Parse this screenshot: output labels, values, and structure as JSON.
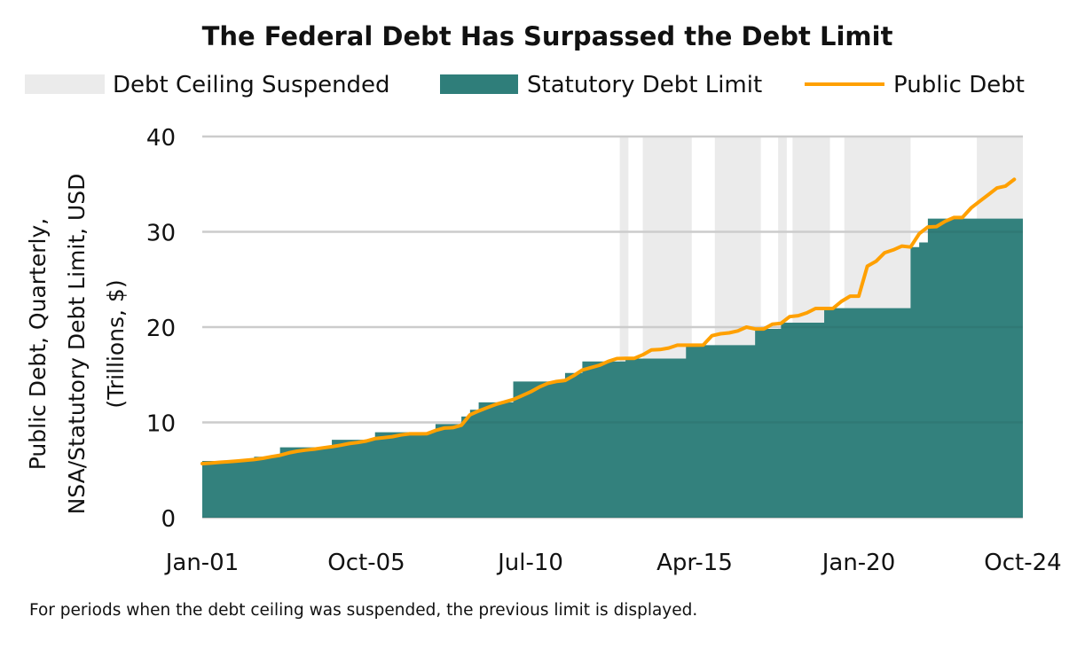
{
  "chart_data": {
    "type": "area+line",
    "title": "The Federal Debt Has Surpassed the Debt Limit",
    "ylabel_lines": [
      "Public Debt, Quarterly,",
      "NSA/Statutory Debt Limit, USD",
      "(Trillions, $)"
    ],
    "xlabel": "",
    "ylim": [
      0,
      40
    ],
    "yticks": [
      "0",
      "10",
      "20",
      "30",
      "40"
    ],
    "xlim": [
      "Jan-01",
      "Oct-24"
    ],
    "xticks": [
      "Jan-01",
      "Oct-05",
      "Jul-10",
      "Apr-15",
      "Jan-20",
      "Oct-24"
    ],
    "grid": "horizontal",
    "legend_position": "top",
    "legend": {
      "suspended": "Debt Ceiling Suspended",
      "limit": "Statutory Debt Limit",
      "debt": "Public Debt"
    },
    "colors": {
      "suspended": "#ebebeb",
      "limit": "#2f7e7a",
      "debt": "#ffa000",
      "grid": "#d9d9d9"
    },
    "suspension_periods": [
      [
        "Feb-13",
        "May-13"
      ],
      [
        "Oct-13",
        "Mar-15"
      ],
      [
        "Nov-15",
        "Mar-17"
      ],
      [
        "Sep-17",
        "Dec-17"
      ],
      [
        "Feb-18",
        "Mar-19"
      ],
      [
        "Aug-19",
        "Jul-21"
      ],
      [
        "Jun-23",
        "Oct-24"
      ]
    ],
    "statutory_debt_limit_steps": [
      [
        "Jan-01",
        5.95
      ],
      [
        "Jul-02",
        6.4
      ],
      [
        "Apr-03",
        7.38
      ],
      [
        "Oct-04",
        8.18
      ],
      [
        "Jan-06",
        8.97
      ],
      [
        "Oct-07",
        9.82
      ],
      [
        "Jul-08",
        10.62
      ],
      [
        "Oct-08",
        11.32
      ],
      [
        "Jan-09",
        12.1
      ],
      [
        "Jan-10",
        14.29
      ],
      [
        "Jul-11",
        15.19
      ],
      [
        "Jan-12",
        16.39
      ],
      [
        "Apr-13",
        16.7
      ],
      [
        "Jan-15",
        18.11
      ],
      [
        "Jan-17",
        19.81
      ],
      [
        "Oct-17",
        20.46
      ],
      [
        "Jan-19",
        21.99
      ],
      [
        "Jul-21",
        28.4
      ],
      [
        "Oct-21",
        28.88
      ],
      [
        "Jan-22",
        31.38
      ]
    ],
    "public_debt": [
      [
        "Jan-01",
        5.67
      ],
      [
        "Apr-01",
        5.73
      ],
      [
        "Jul-01",
        5.81
      ],
      [
        "Oct-01",
        5.87
      ],
      [
        "Jan-02",
        5.94
      ],
      [
        "Apr-02",
        6.02
      ],
      [
        "Jul-02",
        6.1
      ],
      [
        "Oct-02",
        6.23
      ],
      [
        "Jan-03",
        6.4
      ],
      [
        "Apr-03",
        6.55
      ],
      [
        "Jul-03",
        6.8
      ],
      [
        "Oct-03",
        6.98
      ],
      [
        "Jan-04",
        7.1
      ],
      [
        "Apr-04",
        7.2
      ],
      [
        "Jul-04",
        7.33
      ],
      [
        "Oct-04",
        7.45
      ],
      [
        "Jan-05",
        7.6
      ],
      [
        "Apr-05",
        7.78
      ],
      [
        "Jul-05",
        7.9
      ],
      [
        "Oct-05",
        8.05
      ],
      [
        "Jan-06",
        8.3
      ],
      [
        "Apr-06",
        8.4
      ],
      [
        "Jul-06",
        8.5
      ],
      [
        "Oct-06",
        8.68
      ],
      [
        "Jan-07",
        8.8
      ],
      [
        "Apr-07",
        8.8
      ],
      [
        "Jul-07",
        8.82
      ],
      [
        "Oct-07",
        9.15
      ],
      [
        "Jan-08",
        9.4
      ],
      [
        "Apr-08",
        9.45
      ],
      [
        "Jul-08",
        9.7
      ],
      [
        "Oct-08",
        10.8
      ],
      [
        "Jan-09",
        11.2
      ],
      [
        "Apr-09",
        11.55
      ],
      [
        "Jul-09",
        11.9
      ],
      [
        "Oct-09",
        12.15
      ],
      [
        "Jan-10",
        12.4
      ],
      [
        "Apr-10",
        12.8
      ],
      [
        "Jul-10",
        13.2
      ],
      [
        "Oct-10",
        13.7
      ],
      [
        "Jan-11",
        14.1
      ],
      [
        "Apr-11",
        14.3
      ],
      [
        "Jul-11",
        14.4
      ],
      [
        "Oct-11",
        14.9
      ],
      [
        "Jan-12",
        15.5
      ],
      [
        "Apr-12",
        15.75
      ],
      [
        "Jul-12",
        16.0
      ],
      [
        "Oct-12",
        16.4
      ],
      [
        "Jan-13",
        16.7
      ],
      [
        "Apr-13",
        16.72
      ],
      [
        "Jul-13",
        16.72
      ],
      [
        "Oct-13",
        17.1
      ],
      [
        "Jan-14",
        17.6
      ],
      [
        "Apr-14",
        17.65
      ],
      [
        "Jul-14",
        17.8
      ],
      [
        "Oct-14",
        18.1
      ],
      [
        "Jan-15",
        18.1
      ],
      [
        "Apr-15",
        18.1
      ],
      [
        "Jul-15",
        18.12
      ],
      [
        "Oct-15",
        19.1
      ],
      [
        "Jan-16",
        19.3
      ],
      [
        "Apr-16",
        19.4
      ],
      [
        "Jul-16",
        19.6
      ],
      [
        "Oct-16",
        20.0
      ],
      [
        "Jan-17",
        19.8
      ],
      [
        "Apr-17",
        19.8
      ],
      [
        "Jul-17",
        20.3
      ],
      [
        "Oct-17",
        20.4
      ],
      [
        "Jan-18",
        21.1
      ],
      [
        "Apr-18",
        21.2
      ],
      [
        "Jul-18",
        21.5
      ],
      [
        "Oct-18",
        21.95
      ],
      [
        "Jan-19",
        21.95
      ],
      [
        "Apr-19",
        21.95
      ],
      [
        "Jul-19",
        22.7
      ],
      [
        "Oct-19",
        23.25
      ],
      [
        "Jan-20",
        23.25
      ],
      [
        "Apr-20",
        26.4
      ],
      [
        "Jul-20",
        26.9
      ],
      [
        "Oct-20",
        27.8
      ],
      [
        "Jan-21",
        28.1
      ],
      [
        "Apr-21",
        28.5
      ],
      [
        "Jul-21",
        28.4
      ],
      [
        "Oct-21",
        29.8
      ],
      [
        "Jan-22",
        30.5
      ],
      [
        "Apr-22",
        30.55
      ],
      [
        "Jul-22",
        31.1
      ],
      [
        "Oct-22",
        31.5
      ],
      [
        "Jan-23",
        31.5
      ],
      [
        "Apr-23",
        32.5
      ],
      [
        "Jul-23",
        33.2
      ],
      [
        "Oct-23",
        33.9
      ],
      [
        "Jan-24",
        34.6
      ],
      [
        "Apr-24",
        34.8
      ],
      [
        "Jul-24",
        35.5
      ]
    ],
    "footnote": "For periods when the debt ceiling was suspended, the previous limit is displayed."
  }
}
